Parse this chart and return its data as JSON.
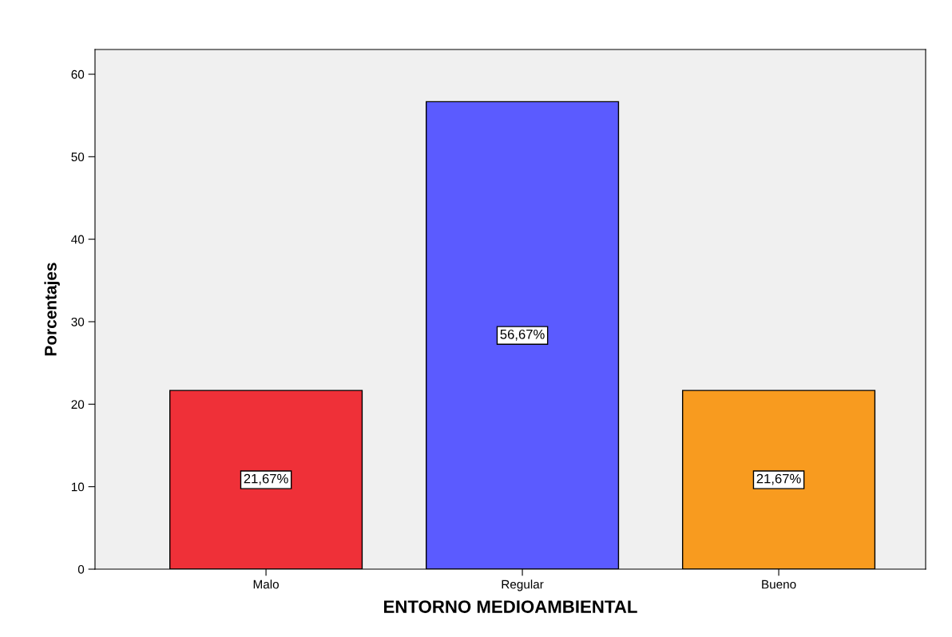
{
  "chart_data": {
    "type": "bar",
    "xlabel": "ENTORNO MEDIOAMBIENTAL",
    "ylabel": "Porcentajes",
    "categories": [
      "Malo",
      "Regular",
      "Bueno"
    ],
    "values": [
      21.67,
      56.67,
      21.67
    ],
    "colors": [
      "#ef3038",
      "#5b5bff",
      "#f89b1f"
    ],
    "value_labels": [
      "21,67%",
      "56,67%",
      "21,67%"
    ],
    "ylim": [
      0,
      63
    ],
    "yticks": [
      0,
      10,
      20,
      30,
      40,
      50,
      60
    ],
    "grid": false,
    "legend": false
  }
}
